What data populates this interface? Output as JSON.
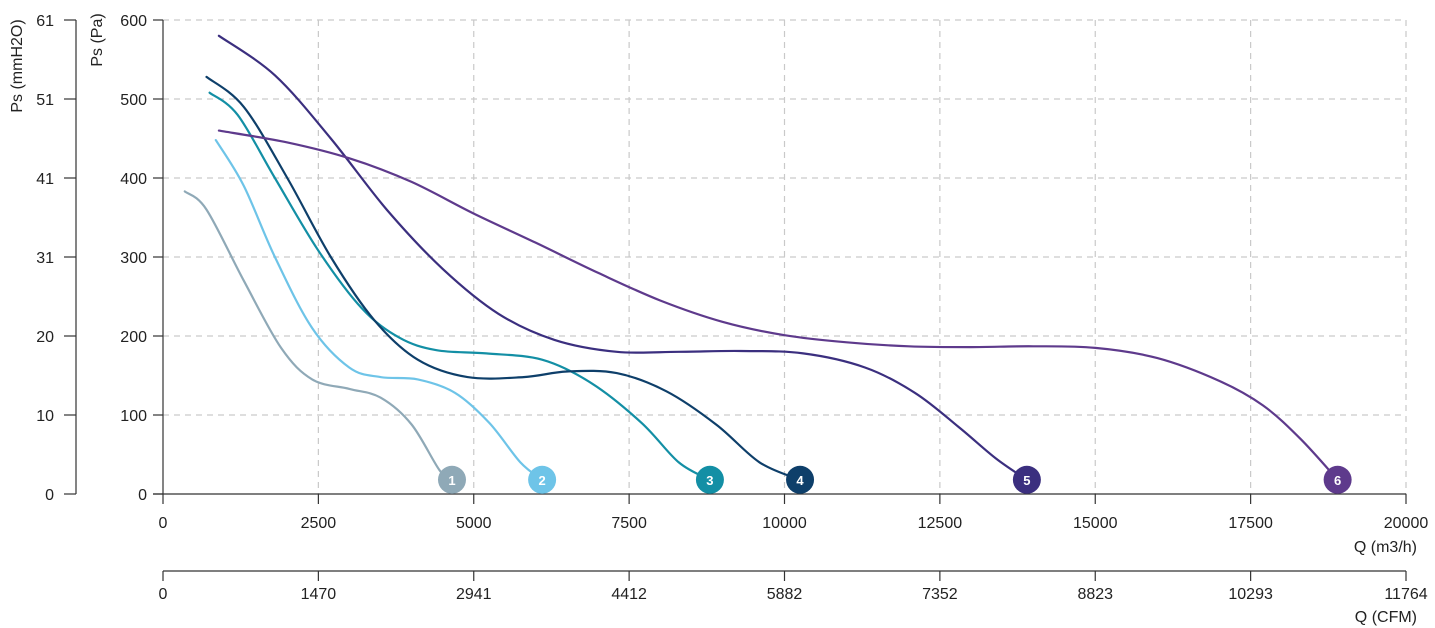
{
  "chart_data": {
    "type": "line",
    "x_axis_primary": {
      "label": "Q (m3/h)",
      "range": [
        0,
        20000
      ],
      "ticks": [
        0,
        2500,
        5000,
        7500,
        10000,
        12500,
        15000,
        17500,
        20000
      ]
    },
    "x_axis_secondary": {
      "label": "Q (CFM)",
      "ticks": [
        "0",
        "1470",
        "2941",
        "4412",
        "5882",
        "7352",
        "8823",
        "10293",
        "11764"
      ]
    },
    "y_axis_primary": {
      "label": "Ps (Pa)",
      "range": [
        0,
        600
      ],
      "ticks": [
        0,
        100,
        200,
        300,
        400,
        500,
        600
      ]
    },
    "y_axis_secondary": {
      "label": "Ps (mmH2O)",
      "ticks": [
        "0",
        "10",
        "20",
        "31",
        "41",
        "51",
        "61"
      ]
    },
    "grid": true,
    "series": [
      {
        "name": "1",
        "color": "#8fa9b7",
        "marker_x": 4650,
        "points": [
          [
            350,
            383
          ],
          [
            700,
            360
          ],
          [
            1300,
            270
          ],
          [
            1900,
            185
          ],
          [
            2400,
            145
          ],
          [
            3000,
            133
          ],
          [
            3500,
            122
          ],
          [
            4000,
            88
          ],
          [
            4450,
            30
          ],
          [
            4650,
            18
          ]
        ]
      },
      {
        "name": "2",
        "color": "#6ec4e8",
        "marker_x": 6100,
        "points": [
          [
            850,
            448
          ],
          [
            1300,
            390
          ],
          [
            1800,
            300
          ],
          [
            2400,
            210
          ],
          [
            3000,
            160
          ],
          [
            3500,
            148
          ],
          [
            4100,
            145
          ],
          [
            4700,
            128
          ],
          [
            5250,
            90
          ],
          [
            5750,
            40
          ],
          [
            6100,
            18
          ]
        ]
      },
      {
        "name": "3",
        "color": "#138fa5",
        "marker_x": 8800,
        "points": [
          [
            750,
            508
          ],
          [
            1200,
            480
          ],
          [
            1800,
            400
          ],
          [
            2500,
            308
          ],
          [
            3200,
            235
          ],
          [
            3800,
            198
          ],
          [
            4400,
            182
          ],
          [
            5200,
            178
          ],
          [
            6100,
            170
          ],
          [
            6900,
            140
          ],
          [
            7700,
            90
          ],
          [
            8300,
            40
          ],
          [
            8800,
            18
          ]
        ]
      },
      {
        "name": "4",
        "color": "#0e3f6a",
        "marker_x": 10250,
        "points": [
          [
            700,
            528
          ],
          [
            1300,
            490
          ],
          [
            2000,
            400
          ],
          [
            2700,
            300
          ],
          [
            3400,
            220
          ],
          [
            4100,
            170
          ],
          [
            4900,
            148
          ],
          [
            5800,
            148
          ],
          [
            6500,
            155
          ],
          [
            7300,
            153
          ],
          [
            8100,
            130
          ],
          [
            8900,
            88
          ],
          [
            9600,
            40
          ],
          [
            10250,
            18
          ]
        ]
      },
      {
        "name": "5",
        "color": "#3b2f7f",
        "marker_x": 13900,
        "points": [
          [
            900,
            580
          ],
          [
            1800,
            530
          ],
          [
            2700,
            450
          ],
          [
            3600,
            360
          ],
          [
            4500,
            285
          ],
          [
            5400,
            228
          ],
          [
            6300,
            195
          ],
          [
            7300,
            180
          ],
          [
            8300,
            180
          ],
          [
            9300,
            181
          ],
          [
            10300,
            178
          ],
          [
            11300,
            160
          ],
          [
            12100,
            128
          ],
          [
            12800,
            85
          ],
          [
            13400,
            45
          ],
          [
            13900,
            18
          ]
        ]
      },
      {
        "name": "6",
        "color": "#5e3a8c",
        "marker_x": 18900,
        "points": [
          [
            900,
            460
          ],
          [
            2000,
            445
          ],
          [
            3000,
            425
          ],
          [
            4000,
            395
          ],
          [
            5000,
            355
          ],
          [
            6000,
            318
          ],
          [
            7000,
            280
          ],
          [
            8000,
            245
          ],
          [
            9000,
            218
          ],
          [
            10000,
            201
          ],
          [
            11000,
            192
          ],
          [
            12000,
            187
          ],
          [
            13000,
            186
          ],
          [
            14000,
            187
          ],
          [
            15000,
            185
          ],
          [
            16000,
            172
          ],
          [
            17000,
            143
          ],
          [
            17700,
            112
          ],
          [
            18300,
            70
          ],
          [
            18900,
            18
          ]
        ]
      }
    ]
  }
}
